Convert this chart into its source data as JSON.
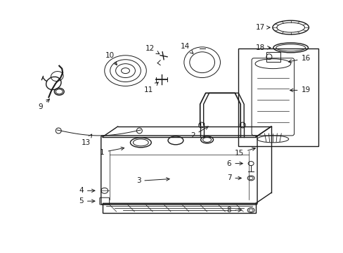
{
  "background_color": "#ffffff",
  "fig_width": 4.89,
  "fig_height": 3.6,
  "dpi": 100,
  "line_color": "#1a1a1a",
  "label_fontsize": 7.5
}
